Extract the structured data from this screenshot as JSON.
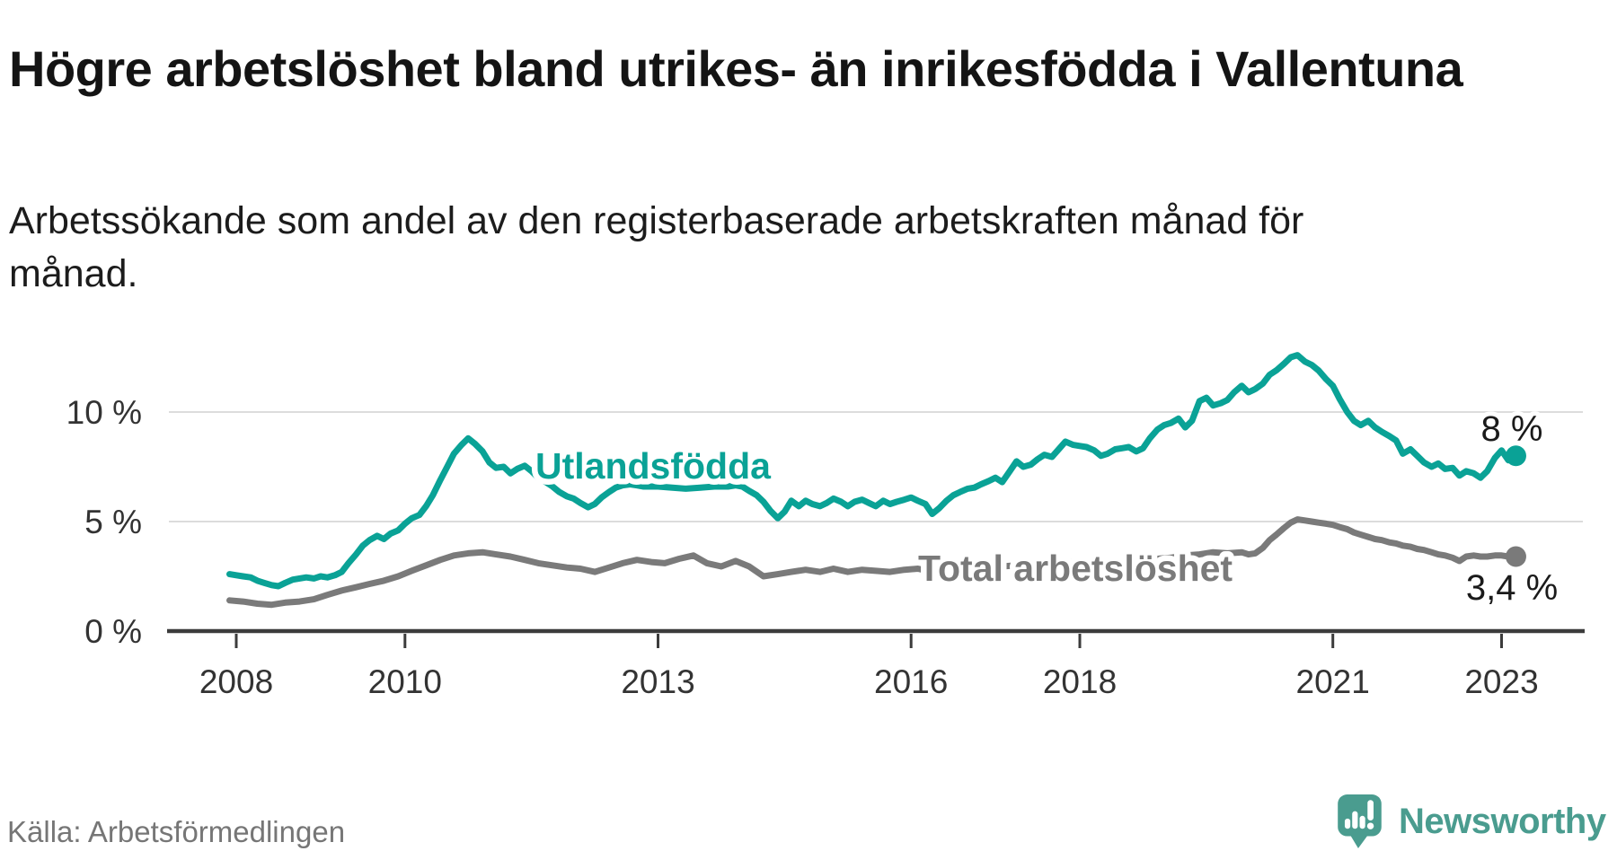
{
  "header": {
    "title": "Högre arbetslöshet bland utrikes- än inrikesfödda i Vallentuna",
    "subtitle": "Arbetssökande som andel av den registerbaserade arbetskraften månad för månad."
  },
  "footer": {
    "source": "Källa: Arbetsförmedlingen",
    "brand": "Newsworthy",
    "logo_icon": "newsworthy-speech-bubble-barchart-icon"
  },
  "colors": {
    "accent_teal_line": "#0AA296",
    "total_gray_line": "#7A7A7A",
    "brand_teal": "#4A9C8F",
    "gridline": "#DCDCDC",
    "axis": "#3C3C3C",
    "text_dark": "#141414"
  },
  "chart_data": {
    "type": "line",
    "title": "Högre arbetslöshet bland utrikes- än inrikesfödda i Vallentuna",
    "subtitle": "Arbetssökande som andel av den registerbaserade arbetskraften månad för månad.",
    "source": "Arbetsförmedlingen",
    "unit": "%",
    "grid": "horizontal",
    "legend_position": "inline-labels",
    "xlim": [
      2007.85,
      2023.95
    ],
    "ylim": [
      0,
      13.5
    ],
    "x_tick_values": [
      2008,
      2010,
      2013,
      2016,
      2018,
      2021,
      2023
    ],
    "x_tick_labels": [
      "2008",
      "2010",
      "2013",
      "2016",
      "2018",
      "2021",
      "2023"
    ],
    "y_tick_values": [
      0,
      5,
      10
    ],
    "y_tick_labels": [
      "0 %",
      "5 %",
      "10 %"
    ],
    "series": [
      {
        "name": "Utlandsfödda",
        "color": "#0AA296",
        "end_label": "8 %",
        "end_value": 8.0,
        "points": [
          [
            2007.92,
            2.6
          ],
          [
            2008.0,
            2.55
          ],
          [
            2008.08,
            2.5
          ],
          [
            2008.17,
            2.45
          ],
          [
            2008.25,
            2.3
          ],
          [
            2008.33,
            2.2
          ],
          [
            2008.42,
            2.1
          ],
          [
            2008.5,
            2.05
          ],
          [
            2008.58,
            2.2
          ],
          [
            2008.67,
            2.35
          ],
          [
            2008.75,
            2.4
          ],
          [
            2008.83,
            2.45
          ],
          [
            2008.92,
            2.4
          ],
          [
            2009.0,
            2.5
          ],
          [
            2009.08,
            2.45
          ],
          [
            2009.17,
            2.55
          ],
          [
            2009.25,
            2.7
          ],
          [
            2009.33,
            3.1
          ],
          [
            2009.42,
            3.5
          ],
          [
            2009.5,
            3.9
          ],
          [
            2009.58,
            4.15
          ],
          [
            2009.67,
            4.35
          ],
          [
            2009.75,
            4.2
          ],
          [
            2009.83,
            4.45
          ],
          [
            2009.92,
            4.6
          ],
          [
            2010.0,
            4.9
          ],
          [
            2010.08,
            5.15
          ],
          [
            2010.17,
            5.3
          ],
          [
            2010.25,
            5.7
          ],
          [
            2010.33,
            6.2
          ],
          [
            2010.42,
            6.9
          ],
          [
            2010.5,
            7.5
          ],
          [
            2010.58,
            8.1
          ],
          [
            2010.67,
            8.5
          ],
          [
            2010.75,
            8.8
          ],
          [
            2010.83,
            8.55
          ],
          [
            2010.92,
            8.2
          ],
          [
            2011.0,
            7.7
          ],
          [
            2011.08,
            7.45
          ],
          [
            2011.17,
            7.5
          ],
          [
            2011.25,
            7.2
          ],
          [
            2011.33,
            7.4
          ],
          [
            2011.42,
            7.55
          ],
          [
            2011.5,
            7.3
          ],
          [
            2011.58,
            7.0
          ],
          [
            2011.67,
            6.8
          ],
          [
            2011.75,
            6.6
          ],
          [
            2011.83,
            6.35
          ],
          [
            2011.92,
            6.15
          ],
          [
            2012.0,
            6.05
          ],
          [
            2012.08,
            5.85
          ],
          [
            2012.17,
            5.65
          ],
          [
            2012.25,
            5.8
          ],
          [
            2012.33,
            6.1
          ],
          [
            2012.42,
            6.35
          ],
          [
            2012.5,
            6.55
          ],
          [
            2012.58,
            6.65
          ],
          [
            2012.67,
            6.7
          ],
          [
            2012.75,
            6.65
          ],
          [
            2012.83,
            6.6
          ],
          [
            2012.92,
            6.6
          ],
          [
            2013.0,
            6.6
          ],
          [
            2013.17,
            6.55
          ],
          [
            2013.33,
            6.5
          ],
          [
            2013.5,
            6.55
          ],
          [
            2013.67,
            6.6
          ],
          [
            2013.83,
            6.6
          ],
          [
            2013.92,
            6.65
          ],
          [
            2014.0,
            6.6
          ],
          [
            2014.08,
            6.4
          ],
          [
            2014.17,
            6.2
          ],
          [
            2014.25,
            5.9
          ],
          [
            2014.33,
            5.5
          ],
          [
            2014.42,
            5.15
          ],
          [
            2014.5,
            5.45
          ],
          [
            2014.58,
            5.95
          ],
          [
            2014.67,
            5.7
          ],
          [
            2014.75,
            5.95
          ],
          [
            2014.83,
            5.8
          ],
          [
            2014.92,
            5.7
          ],
          [
            2015.0,
            5.85
          ],
          [
            2015.08,
            6.05
          ],
          [
            2015.17,
            5.9
          ],
          [
            2015.25,
            5.7
          ],
          [
            2015.33,
            5.9
          ],
          [
            2015.42,
            6.0
          ],
          [
            2015.5,
            5.85
          ],
          [
            2015.58,
            5.7
          ],
          [
            2015.67,
            5.95
          ],
          [
            2015.75,
            5.8
          ],
          [
            2015.83,
            5.9
          ],
          [
            2015.92,
            6.0
          ],
          [
            2016.0,
            6.1
          ],
          [
            2016.08,
            5.95
          ],
          [
            2016.17,
            5.8
          ],
          [
            2016.25,
            5.35
          ],
          [
            2016.33,
            5.6
          ],
          [
            2016.42,
            5.95
          ],
          [
            2016.5,
            6.2
          ],
          [
            2016.58,
            6.35
          ],
          [
            2016.67,
            6.5
          ],
          [
            2016.75,
            6.55
          ],
          [
            2016.83,
            6.7
          ],
          [
            2016.92,
            6.85
          ],
          [
            2017.0,
            7.0
          ],
          [
            2017.08,
            6.8
          ],
          [
            2017.17,
            7.3
          ],
          [
            2017.25,
            7.75
          ],
          [
            2017.33,
            7.5
          ],
          [
            2017.42,
            7.6
          ],
          [
            2017.5,
            7.85
          ],
          [
            2017.58,
            8.05
          ],
          [
            2017.67,
            7.95
          ],
          [
            2017.75,
            8.3
          ],
          [
            2017.83,
            8.65
          ],
          [
            2017.92,
            8.5
          ],
          [
            2018.0,
            8.45
          ],
          [
            2018.08,
            8.4
          ],
          [
            2018.17,
            8.25
          ],
          [
            2018.25,
            8.0
          ],
          [
            2018.33,
            8.1
          ],
          [
            2018.42,
            8.3
          ],
          [
            2018.5,
            8.35
          ],
          [
            2018.58,
            8.4
          ],
          [
            2018.67,
            8.2
          ],
          [
            2018.75,
            8.35
          ],
          [
            2018.83,
            8.8
          ],
          [
            2018.92,
            9.2
          ],
          [
            2019.0,
            9.4
          ],
          [
            2019.08,
            9.5
          ],
          [
            2019.17,
            9.7
          ],
          [
            2019.25,
            9.3
          ],
          [
            2019.33,
            9.6
          ],
          [
            2019.42,
            10.5
          ],
          [
            2019.5,
            10.65
          ],
          [
            2019.58,
            10.3
          ],
          [
            2019.67,
            10.4
          ],
          [
            2019.75,
            10.55
          ],
          [
            2019.83,
            10.9
          ],
          [
            2019.92,
            11.2
          ],
          [
            2020.0,
            10.9
          ],
          [
            2020.08,
            11.05
          ],
          [
            2020.17,
            11.3
          ],
          [
            2020.25,
            11.7
          ],
          [
            2020.33,
            11.9
          ],
          [
            2020.42,
            12.2
          ],
          [
            2020.5,
            12.5
          ],
          [
            2020.58,
            12.6
          ],
          [
            2020.67,
            12.3
          ],
          [
            2020.75,
            12.15
          ],
          [
            2020.83,
            11.9
          ],
          [
            2020.92,
            11.5
          ],
          [
            2021.0,
            11.2
          ],
          [
            2021.08,
            10.6
          ],
          [
            2021.17,
            10.0
          ],
          [
            2021.25,
            9.6
          ],
          [
            2021.33,
            9.4
          ],
          [
            2021.42,
            9.6
          ],
          [
            2021.5,
            9.3
          ],
          [
            2021.58,
            9.1
          ],
          [
            2021.67,
            8.9
          ],
          [
            2021.75,
            8.7
          ],
          [
            2021.83,
            8.1
          ],
          [
            2021.92,
            8.3
          ],
          [
            2022.0,
            8.0
          ],
          [
            2022.08,
            7.7
          ],
          [
            2022.17,
            7.5
          ],
          [
            2022.25,
            7.65
          ],
          [
            2022.33,
            7.4
          ],
          [
            2022.42,
            7.45
          ],
          [
            2022.5,
            7.1
          ],
          [
            2022.58,
            7.3
          ],
          [
            2022.67,
            7.2
          ],
          [
            2022.75,
            7.0
          ],
          [
            2022.83,
            7.3
          ],
          [
            2022.92,
            7.9
          ],
          [
            2023.0,
            8.25
          ],
          [
            2023.08,
            7.8
          ],
          [
            2023.17,
            8.0
          ]
        ]
      },
      {
        "name": "Total arbetslöshet",
        "color": "#7A7A7A",
        "end_label": "3,4 %",
        "end_value": 3.4,
        "points": [
          [
            2007.92,
            1.4
          ],
          [
            2008.08,
            1.35
          ],
          [
            2008.25,
            1.25
          ],
          [
            2008.42,
            1.2
          ],
          [
            2008.58,
            1.3
          ],
          [
            2008.75,
            1.35
          ],
          [
            2008.92,
            1.45
          ],
          [
            2009.08,
            1.65
          ],
          [
            2009.25,
            1.85
          ],
          [
            2009.42,
            2.0
          ],
          [
            2009.58,
            2.15
          ],
          [
            2009.75,
            2.3
          ],
          [
            2009.92,
            2.5
          ],
          [
            2010.08,
            2.75
          ],
          [
            2010.25,
            3.0
          ],
          [
            2010.42,
            3.25
          ],
          [
            2010.58,
            3.45
          ],
          [
            2010.75,
            3.55
          ],
          [
            2010.92,
            3.6
          ],
          [
            2011.08,
            3.5
          ],
          [
            2011.25,
            3.4
          ],
          [
            2011.42,
            3.25
          ],
          [
            2011.58,
            3.1
          ],
          [
            2011.75,
            3.0
          ],
          [
            2011.92,
            2.9
          ],
          [
            2012.08,
            2.85
          ],
          [
            2012.25,
            2.7
          ],
          [
            2012.42,
            2.9
          ],
          [
            2012.58,
            3.1
          ],
          [
            2012.75,
            3.25
          ],
          [
            2012.92,
            3.15
          ],
          [
            2013.08,
            3.1
          ],
          [
            2013.25,
            3.3
          ],
          [
            2013.42,
            3.45
          ],
          [
            2013.58,
            3.1
          ],
          [
            2013.75,
            2.95
          ],
          [
            2013.92,
            3.2
          ],
          [
            2014.08,
            2.95
          ],
          [
            2014.25,
            2.5
          ],
          [
            2014.42,
            2.6
          ],
          [
            2014.58,
            2.7
          ],
          [
            2014.75,
            2.8
          ],
          [
            2014.92,
            2.7
          ],
          [
            2015.08,
            2.85
          ],
          [
            2015.25,
            2.7
          ],
          [
            2015.42,
            2.8
          ],
          [
            2015.58,
            2.75
          ],
          [
            2015.75,
            2.7
          ],
          [
            2015.92,
            2.8
          ],
          [
            2016.08,
            2.85
          ],
          [
            2016.25,
            2.7
          ],
          [
            2016.42,
            2.8
          ],
          [
            2016.58,
            2.85
          ],
          [
            2016.75,
            2.9
          ],
          [
            2016.92,
            2.9
          ],
          [
            2017.08,
            2.95
          ],
          [
            2017.25,
            3.0
          ],
          [
            2017.42,
            3.05
          ],
          [
            2017.58,
            3.1
          ],
          [
            2017.75,
            3.1
          ],
          [
            2017.92,
            3.15
          ],
          [
            2018.08,
            3.2
          ],
          [
            2018.25,
            3.1
          ],
          [
            2018.42,
            3.2
          ],
          [
            2018.58,
            3.25
          ],
          [
            2018.75,
            3.2
          ],
          [
            2018.92,
            3.3
          ],
          [
            2019.08,
            3.35
          ],
          [
            2019.25,
            3.45
          ],
          [
            2019.42,
            3.5
          ],
          [
            2019.58,
            3.6
          ],
          [
            2019.75,
            3.55
          ],
          [
            2019.92,
            3.6
          ],
          [
            2020.0,
            3.5
          ],
          [
            2020.08,
            3.55
          ],
          [
            2020.17,
            3.8
          ],
          [
            2020.25,
            4.15
          ],
          [
            2020.33,
            4.4
          ],
          [
            2020.42,
            4.7
          ],
          [
            2020.5,
            4.95
          ],
          [
            2020.58,
            5.1
          ],
          [
            2020.67,
            5.05
          ],
          [
            2020.75,
            5.0
          ],
          [
            2020.83,
            4.95
          ],
          [
            2020.92,
            4.9
          ],
          [
            2021.0,
            4.85
          ],
          [
            2021.08,
            4.75
          ],
          [
            2021.17,
            4.65
          ],
          [
            2021.25,
            4.5
          ],
          [
            2021.33,
            4.4
          ],
          [
            2021.42,
            4.3
          ],
          [
            2021.5,
            4.2
          ],
          [
            2021.58,
            4.15
          ],
          [
            2021.67,
            4.05
          ],
          [
            2021.75,
            4.0
          ],
          [
            2021.83,
            3.9
          ],
          [
            2021.92,
            3.85
          ],
          [
            2022.0,
            3.75
          ],
          [
            2022.08,
            3.7
          ],
          [
            2022.17,
            3.6
          ],
          [
            2022.25,
            3.5
          ],
          [
            2022.33,
            3.45
          ],
          [
            2022.42,
            3.35
          ],
          [
            2022.5,
            3.2
          ],
          [
            2022.58,
            3.4
          ],
          [
            2022.67,
            3.45
          ],
          [
            2022.75,
            3.4
          ],
          [
            2022.83,
            3.4
          ],
          [
            2022.92,
            3.45
          ],
          [
            2023.0,
            3.45
          ],
          [
            2023.08,
            3.4
          ],
          [
            2023.17,
            3.4
          ]
        ]
      }
    ]
  }
}
